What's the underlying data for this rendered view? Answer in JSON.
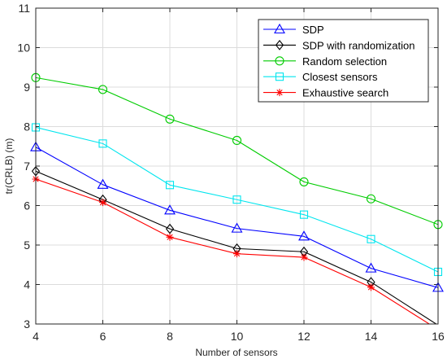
{
  "chart_data": {
    "type": "line",
    "title": "",
    "xlabel": "Number of sensors",
    "ylabel": "tr(CRLB) (m)",
    "x": [
      4,
      6,
      8,
      10,
      12,
      14,
      16
    ],
    "xlim": [
      4,
      16
    ],
    "ylim": [
      3,
      11
    ],
    "xticks": [
      "4",
      "6",
      "8",
      "10",
      "12",
      "14",
      "16"
    ],
    "yticks": [
      "3",
      "4",
      "5",
      "6",
      "7",
      "8",
      "9",
      "10",
      "11"
    ],
    "grid": true,
    "legend_position": "top-right",
    "series": [
      {
        "name": "SDP",
        "color": "#0000ff",
        "marker": "triangle",
        "values": [
          7.48,
          6.53,
          5.88,
          5.42,
          5.22,
          4.41,
          3.92
        ]
      },
      {
        "name": "SDP with randomization",
        "color": "#000000",
        "marker": "diamond",
        "values": [
          6.87,
          6.15,
          5.41,
          4.91,
          4.83,
          4.06,
          2.97
        ]
      },
      {
        "name": "Random selection",
        "color": "#00cc00",
        "marker": "circle",
        "values": [
          9.24,
          8.94,
          8.19,
          7.65,
          6.6,
          6.17,
          5.52
        ]
      },
      {
        "name": "Closest sensors",
        "color": "#00e5ee",
        "marker": "square",
        "values": [
          7.98,
          7.57,
          6.52,
          6.15,
          5.77,
          5.15,
          4.32
        ]
      },
      {
        "name": "Exhaustive search",
        "color": "#ff0000",
        "marker": "asterisk",
        "values": [
          6.67,
          6.08,
          5.2,
          4.78,
          4.69,
          3.93,
          2.86
        ]
      }
    ]
  }
}
